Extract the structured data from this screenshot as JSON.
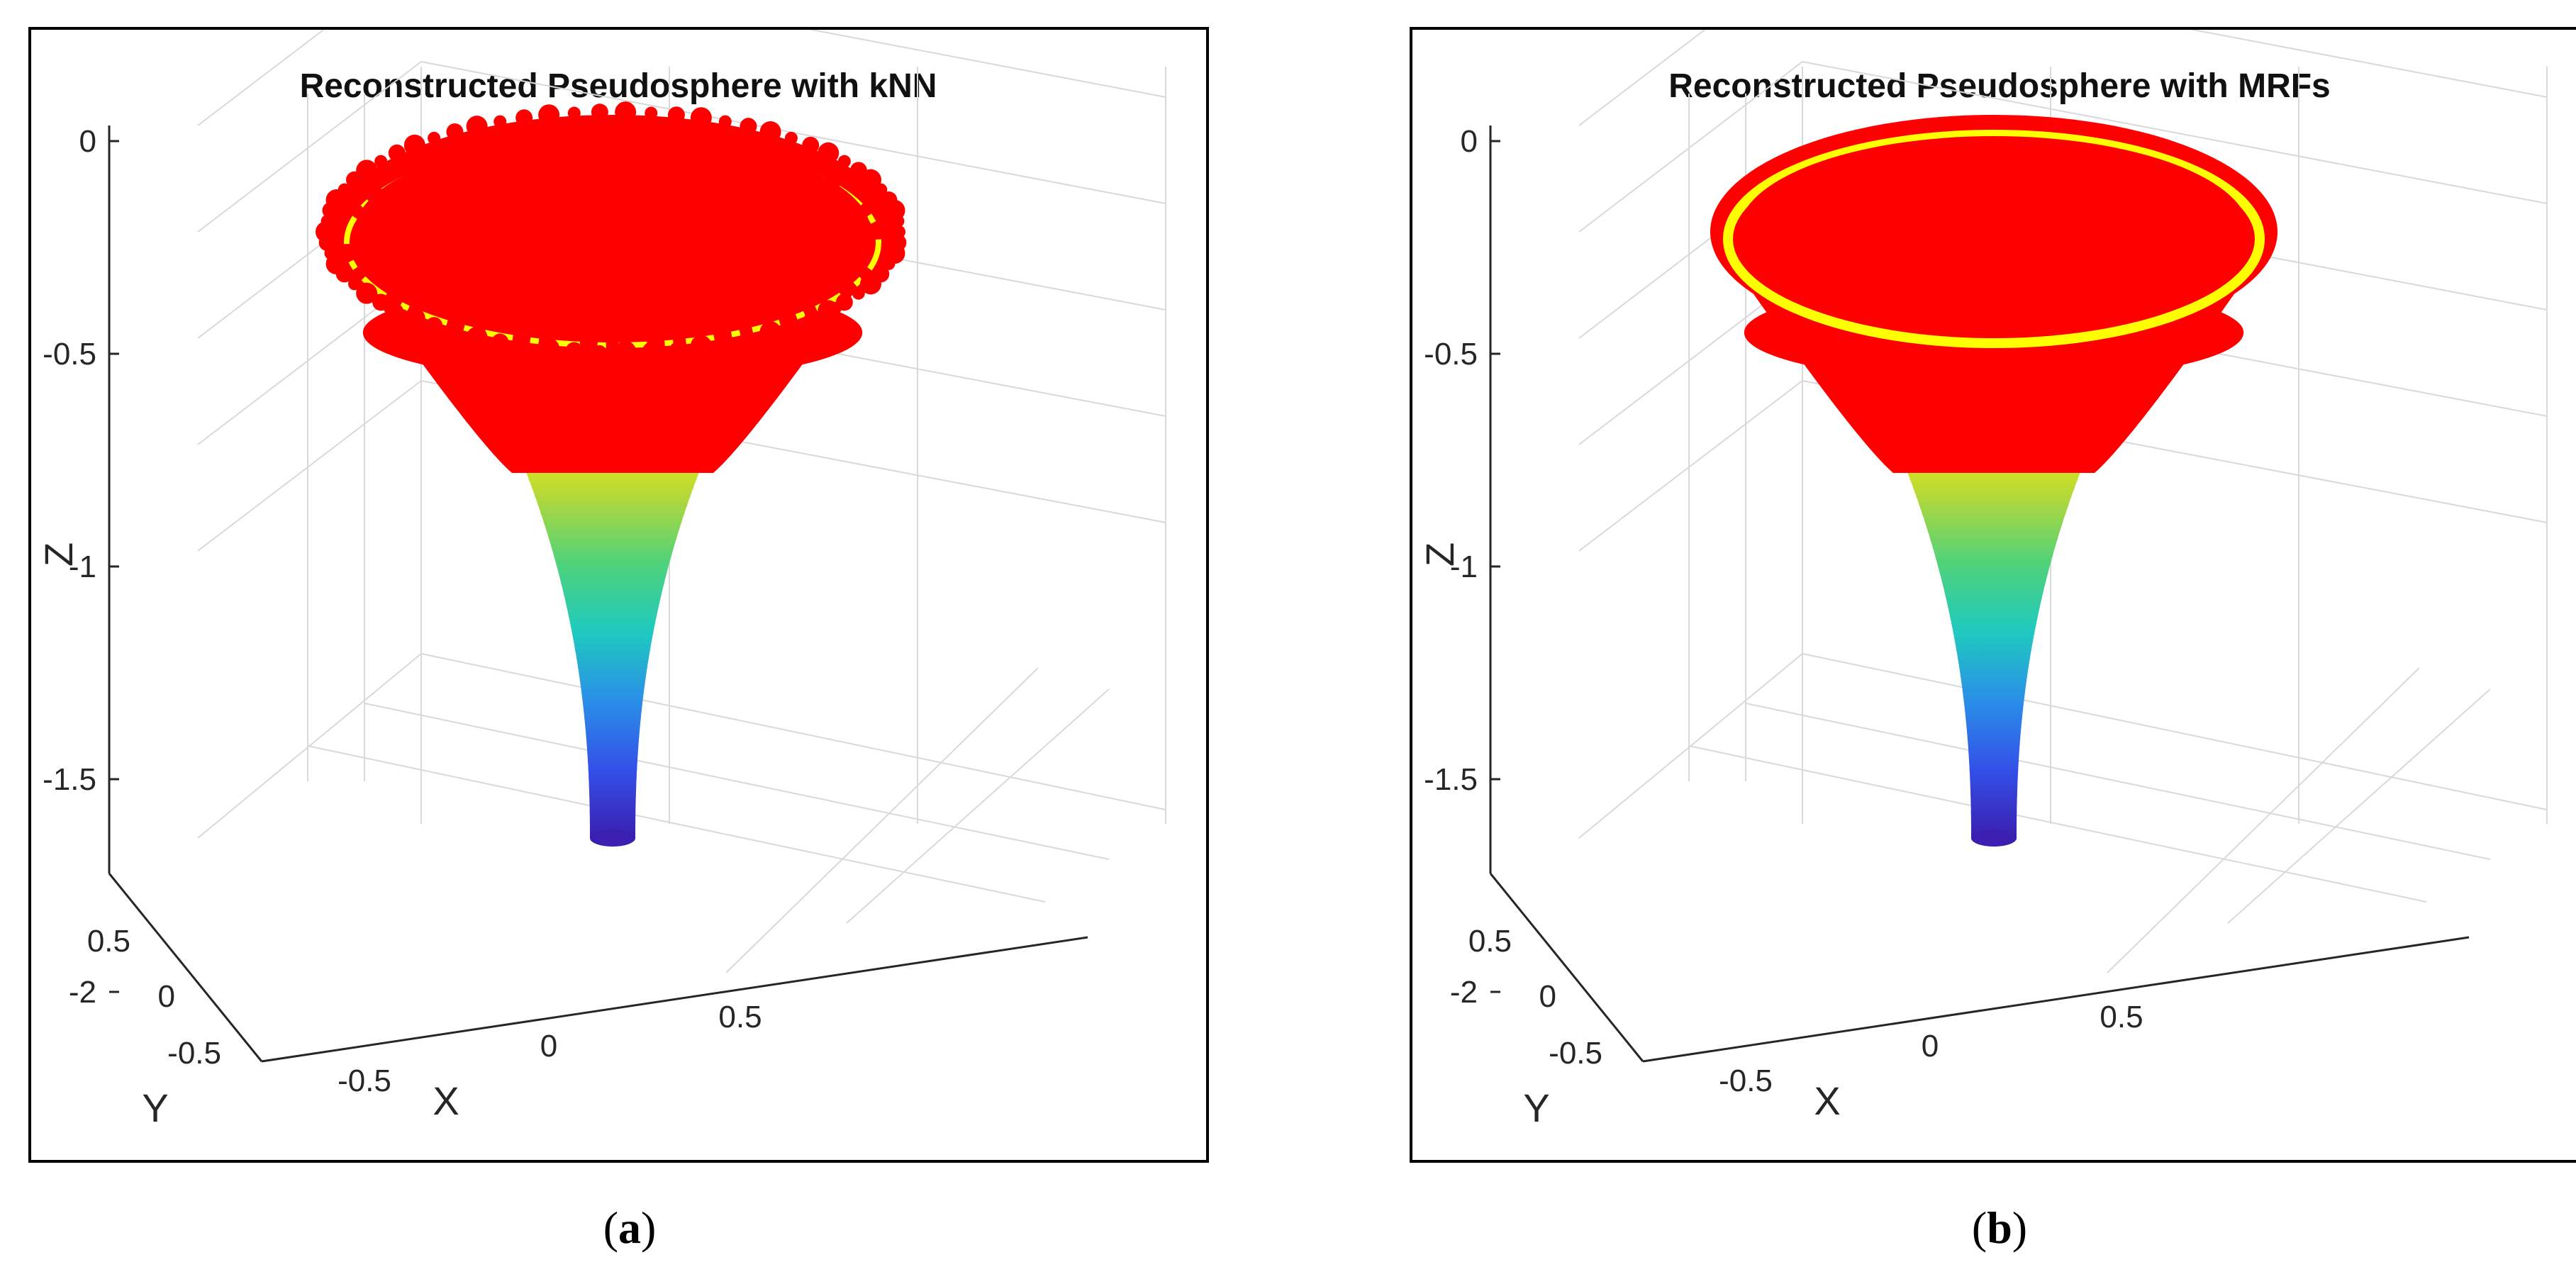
{
  "chart_data": [
    {
      "type": "surface3d",
      "panel_label": "a",
      "title": "Reconstructed Pseudosphere with kNN",
      "xlabel": "X",
      "ylabel": "Y",
      "zlabel": "Z",
      "z_ticks": [
        "0",
        "-0.5",
        "-1",
        "-1.5",
        "-2"
      ],
      "y_ticks": [
        "0.5",
        "0",
        "-0.5"
      ],
      "x_ticks": [
        "-0.5",
        "0",
        "0.5"
      ],
      "zlim": [
        -2.1,
        0
      ],
      "xlim": [
        -1,
        1
      ],
      "ylim": [
        -1,
        1
      ],
      "method": "kNN",
      "top_color": "#ff0000",
      "rim_color": "#ffff00",
      "colormap": [
        "#3a1fb0",
        "#3350e8",
        "#2a8fe8",
        "#1fc9c0",
        "#4fd27a",
        "#b5d83a",
        "#ffef00",
        "#ff0000"
      ]
    },
    {
      "type": "surface3d",
      "panel_label": "b",
      "title": "Reconstructed Pseudosphere with MRFs",
      "xlabel": "X",
      "ylabel": "Y",
      "zlabel": "Z",
      "z_ticks": [
        "0",
        "-0.5",
        "-1",
        "-1.5",
        "-2"
      ],
      "y_ticks": [
        "0.5",
        "0",
        "-0.5"
      ],
      "x_ticks": [
        "-0.5",
        "0",
        "0.5"
      ],
      "zlim": [
        -2.1,
        0
      ],
      "xlim": [
        -1,
        1
      ],
      "ylim": [
        -1,
        1
      ],
      "method": "MRFs",
      "top_color": "#ff0000",
      "rim_color": "#ffff00",
      "colormap": [
        "#3a1fb0",
        "#3350e8",
        "#2a8fe8",
        "#1fc9c0",
        "#4fd27a",
        "#b5d83a",
        "#ffef00",
        "#ff0000"
      ]
    }
  ],
  "captions": {
    "a": "a",
    "b": "b"
  }
}
